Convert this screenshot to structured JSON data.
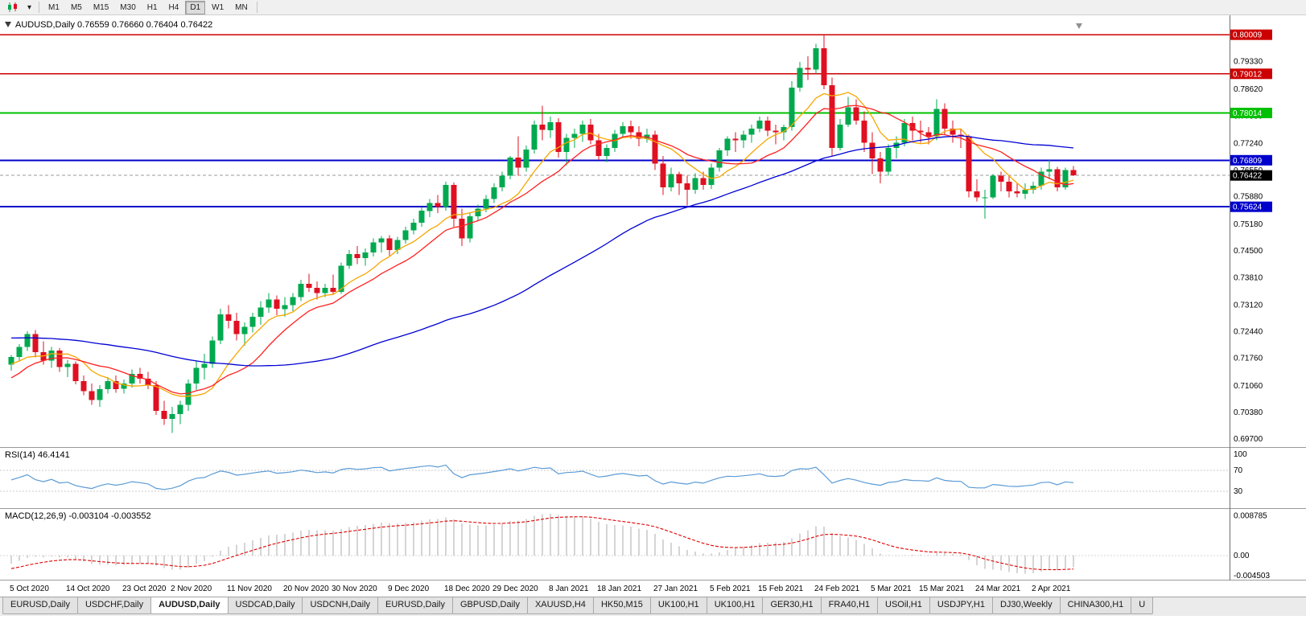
{
  "ui": {
    "toolbar": {
      "timeframes": [
        "M1",
        "M5",
        "M15",
        "M30",
        "H1",
        "H4",
        "D1",
        "W1",
        "MN"
      ],
      "active_timeframe": "D1",
      "dropdown_icon": "▾"
    },
    "price_axis": {
      "ticks": [
        "0.79330",
        "0.78620",
        "0.77930",
        "0.77240",
        "0.76550",
        "0.75880",
        "0.75180",
        "0.74500",
        "0.73810",
        "0.73120",
        "0.72440",
        "0.71760",
        "0.71060",
        "0.70380",
        "0.69700"
      ],
      "line_labels": [
        {
          "text": "0.80009",
          "price": 0.80009,
          "color": "#cc0000"
        },
        {
          "text": "0.79012",
          "price": 0.79012,
          "color": "#cc0000"
        },
        {
          "text": "0.78014",
          "price": 0.78014,
          "color": "#00c000"
        },
        {
          "text": "0.76809",
          "price": 0.76809,
          "color": "#0000cc"
        },
        {
          "text": "0.75624",
          "price": 0.75624,
          "color": "#0000cc"
        }
      ],
      "current": {
        "text": "0.76422",
        "price": 0.76422,
        "bg": "#000000"
      }
    },
    "tabs": {
      "items": [
        "EURUSD,Daily",
        "USDCHF,Daily",
        "AUDUSD,Daily",
        "USDCAD,Daily",
        "USDCNH,Daily",
        "EURUSD,Daily",
        "GBPUSD,Daily",
        "XAUUSD,H4",
        "HK50,M15",
        "UK100,H1",
        "UK100,H1",
        "GER30,H1",
        "FRA40,H1",
        "USOil,H1",
        "USDJPY,H1",
        "DJ30,Weekly",
        "CHINA300,H1",
        "U"
      ],
      "active_index": 2
    }
  },
  "chart_data": {
    "type": "candlestick",
    "symbol": "AUDUSD",
    "timeframe": "Daily",
    "header_text": "AUDUSD,Daily 0.76559 0.76660 0.76404 0.76422",
    "quote": {
      "open": 0.76559,
      "high": 0.7666,
      "low": 0.76404,
      "close": 0.76422
    },
    "colors": {
      "bull": "#00a94f",
      "bear": "#df1021"
    },
    "y_axis": {
      "range": [
        0.695,
        0.803
      ]
    },
    "x_axis": {
      "labels": [
        "5 Oct 2020",
        "14 Oct 2020",
        "23 Oct 2020",
        "2 Nov 2020",
        "11 Nov 2020",
        "20 Nov 2020",
        "30 Nov 2020",
        "9 Dec 2020",
        "18 Dec 2020",
        "29 Dec 2020",
        "8 Jan 2021",
        "18 Jan 2021",
        "27 Jan 2021",
        "5 Feb 2021",
        "15 Feb 2021",
        "24 Feb 2021",
        "5 Mar 2021",
        "15 Mar 2021",
        "24 Mar 2021",
        "2 Apr 2021"
      ],
      "label_indices": [
        0,
        7,
        14,
        20,
        27,
        34,
        40,
        47,
        54,
        60,
        67,
        73,
        80,
        87,
        93,
        100,
        107,
        113,
        120,
        127
      ]
    },
    "horizontal_lines": [
      {
        "price": 0.80009,
        "color": "#cc0000",
        "width": 1.6
      },
      {
        "price": 0.79012,
        "color": "#cc0000",
        "width": 1.6
      },
      {
        "price": 0.78014,
        "color": "#00c000",
        "width": 2
      },
      {
        "price": 0.76809,
        "color": "#0000cc",
        "width": 2
      },
      {
        "price": 0.75624,
        "color": "#0000cc",
        "width": 2
      }
    ],
    "moving_averages": [
      {
        "type": "sma",
        "period": 8,
        "color": "#f6a700"
      },
      {
        "type": "sma",
        "period": 13,
        "color": "#ff2020"
      },
      {
        "type": "sma",
        "period": 55,
        "color": "#0000d4"
      }
    ],
    "indicators": [
      {
        "name": "RSI",
        "display": "RSI(14) 46.4141",
        "value": 46.4141,
        "period": 14,
        "levels": [
          70,
          30
        ],
        "axis_ticks": [
          "100",
          "70",
          "30"
        ],
        "range": [
          0,
          100
        ],
        "color": "#5b9bd5"
      },
      {
        "name": "MACD",
        "display": "MACD(12,26,9) -0.003104 -0.003552",
        "values": [
          -0.003104,
          -0.003552
        ],
        "params": [
          12,
          26,
          9
        ],
        "axis_ticks": [
          "0.008785",
          "0.00",
          "-0.004503"
        ],
        "range": [
          -0.005,
          0.0092
        ],
        "histogram_color": "#ababab",
        "signal_color": "#e00000"
      }
    ],
    "seed_closes_for_indicators": [
      0.715,
      0.7165,
      0.718,
      0.7172,
      0.7188,
      0.7205,
      0.7195,
      0.721,
      0.7222,
      0.7215,
      0.7228,
      0.724,
      0.7232,
      0.7218,
      0.7235,
      0.7248,
      0.726,
      0.7252,
      0.7268,
      0.728,
      0.7272,
      0.7288,
      0.7295,
      0.7285,
      0.7302,
      0.7315,
      0.7308,
      0.7322,
      0.7335,
      0.7328,
      0.7342,
      0.7355,
      0.7348,
      0.736,
      0.7345,
      0.733,
      0.731,
      0.729,
      0.7272,
      0.7255,
      0.724,
      0.7225,
      0.7205,
      0.7185,
      0.716,
      0.713,
      0.7105,
      0.708,
      0.7055,
      0.7035,
      0.706,
      0.709,
      0.7115,
      0.714,
      0.716,
      0.7175,
      0.7162,
      0.715,
      0.7165,
      0.7158
    ],
    "candles": [
      [
        0.716,
        0.7185,
        0.7145,
        0.718
      ],
      [
        0.718,
        0.7212,
        0.717,
        0.7205
      ],
      [
        0.7205,
        0.7245,
        0.7195,
        0.7238
      ],
      [
        0.7238,
        0.7248,
        0.7178,
        0.7192
      ],
      [
        0.7192,
        0.722,
        0.716,
        0.717
      ],
      [
        0.717,
        0.7205,
        0.7152,
        0.7196
      ],
      [
        0.7196,
        0.7202,
        0.7142,
        0.7154
      ],
      [
        0.7154,
        0.7172,
        0.7128,
        0.7162
      ],
      [
        0.7162,
        0.7168,
        0.711,
        0.7118
      ],
      [
        0.7118,
        0.7132,
        0.7082,
        0.7092
      ],
      [
        0.7092,
        0.7112,
        0.7058,
        0.707
      ],
      [
        0.707,
        0.7108,
        0.7052,
        0.7098
      ],
      [
        0.7098,
        0.7128,
        0.7086,
        0.7118
      ],
      [
        0.7118,
        0.7132,
        0.7088,
        0.7098
      ],
      [
        0.7098,
        0.7122,
        0.7086,
        0.7112
      ],
      [
        0.7112,
        0.7148,
        0.7102,
        0.7136
      ],
      [
        0.7136,
        0.7152,
        0.7112,
        0.7124
      ],
      [
        0.7124,
        0.7142,
        0.7098,
        0.7108
      ],
      [
        0.7108,
        0.7118,
        0.7032,
        0.7042
      ],
      [
        0.7042,
        0.7068,
        0.7006,
        0.7022
      ],
      [
        0.7022,
        0.7052,
        0.6986,
        0.7034
      ],
      [
        0.7034,
        0.7068,
        0.7008,
        0.7058
      ],
      [
        0.7058,
        0.7122,
        0.7042,
        0.7112
      ],
      [
        0.7112,
        0.7168,
        0.7096,
        0.7152
      ],
      [
        0.7152,
        0.7188,
        0.7122,
        0.7162
      ],
      [
        0.7162,
        0.7232,
        0.7152,
        0.7222
      ],
      [
        0.7222,
        0.7302,
        0.7212,
        0.7288
      ],
      [
        0.7288,
        0.7312,
        0.7252,
        0.7272
      ],
      [
        0.7272,
        0.7292,
        0.7222,
        0.7238
      ],
      [
        0.7238,
        0.7268,
        0.7208,
        0.7256
      ],
      [
        0.7256,
        0.7292,
        0.7242,
        0.7282
      ],
      [
        0.7282,
        0.7322,
        0.7262,
        0.7306
      ],
      [
        0.7306,
        0.7342,
        0.7292,
        0.7326
      ],
      [
        0.7326,
        0.7336,
        0.7286,
        0.7302
      ],
      [
        0.7302,
        0.7332,
        0.7282,
        0.7312
      ],
      [
        0.7312,
        0.7342,
        0.7296,
        0.7332
      ],
      [
        0.7332,
        0.7376,
        0.7322,
        0.7366
      ],
      [
        0.7366,
        0.7392,
        0.7346,
        0.7356
      ],
      [
        0.7356,
        0.7372,
        0.7326,
        0.7342
      ],
      [
        0.7342,
        0.7366,
        0.7332,
        0.7356
      ],
      [
        0.7356,
        0.739,
        0.7338,
        0.7346
      ],
      [
        0.7346,
        0.742,
        0.734,
        0.7412
      ],
      [
        0.7412,
        0.7452,
        0.7404,
        0.7442
      ],
      [
        0.7442,
        0.7462,
        0.7416,
        0.7432
      ],
      [
        0.7432,
        0.7456,
        0.7412,
        0.7446
      ],
      [
        0.7446,
        0.7482,
        0.7436,
        0.7472
      ],
      [
        0.7472,
        0.7488,
        0.7446,
        0.7482
      ],
      [
        0.7482,
        0.749,
        0.7438,
        0.7452
      ],
      [
        0.7452,
        0.7486,
        0.7442,
        0.7478
      ],
      [
        0.7478,
        0.7512,
        0.7468,
        0.7502
      ],
      [
        0.7502,
        0.7532,
        0.7492,
        0.7522
      ],
      [
        0.7522,
        0.7562,
        0.7512,
        0.7552
      ],
      [
        0.7552,
        0.7582,
        0.7536,
        0.7572
      ],
      [
        0.7572,
        0.7592,
        0.7546,
        0.7562
      ],
      [
        0.7562,
        0.7626,
        0.7552,
        0.7618
      ],
      [
        0.7618,
        0.7624,
        0.7512,
        0.7532
      ],
      [
        0.7532,
        0.7558,
        0.7462,
        0.7482
      ],
      [
        0.7482,
        0.7548,
        0.7472,
        0.7538
      ],
      [
        0.7538,
        0.7568,
        0.7528,
        0.7558
      ],
      [
        0.7558,
        0.7592,
        0.7548,
        0.7582
      ],
      [
        0.7582,
        0.7622,
        0.7572,
        0.7612
      ],
      [
        0.7612,
        0.7652,
        0.7602,
        0.7642
      ],
      [
        0.7642,
        0.7692,
        0.7632,
        0.7688
      ],
      [
        0.7688,
        0.7742,
        0.7642,
        0.7662
      ],
      [
        0.7662,
        0.7718,
        0.7652,
        0.7708
      ],
      [
        0.7708,
        0.7782,
        0.7698,
        0.7772
      ],
      [
        0.7772,
        0.782,
        0.7732,
        0.7758
      ],
      [
        0.7758,
        0.7792,
        0.7738,
        0.7778
      ],
      [
        0.7778,
        0.7788,
        0.7688,
        0.7702
      ],
      [
        0.7702,
        0.7748,
        0.7668,
        0.7738
      ],
      [
        0.7738,
        0.7762,
        0.7712,
        0.7748
      ],
      [
        0.7748,
        0.7782,
        0.7728,
        0.7772
      ],
      [
        0.7772,
        0.7786,
        0.7722,
        0.7732
      ],
      [
        0.7732,
        0.7748,
        0.7682,
        0.7692
      ],
      [
        0.7692,
        0.7722,
        0.7676,
        0.7712
      ],
      [
        0.7712,
        0.7758,
        0.7702,
        0.7748
      ],
      [
        0.7748,
        0.7778,
        0.7738,
        0.7768
      ],
      [
        0.7768,
        0.7782,
        0.7736,
        0.7752
      ],
      [
        0.7752,
        0.7768,
        0.7716,
        0.7736
      ],
      [
        0.7736,
        0.7762,
        0.7726,
        0.7746
      ],
      [
        0.7746,
        0.7756,
        0.7656,
        0.7672
      ],
      [
        0.7672,
        0.7692,
        0.7592,
        0.7612
      ],
      [
        0.7612,
        0.7662,
        0.7602,
        0.7646
      ],
      [
        0.7646,
        0.7652,
        0.7592,
        0.7622
      ],
      [
        0.7622,
        0.7642,
        0.7566,
        0.7606
      ],
      [
        0.7606,
        0.7648,
        0.7596,
        0.7636
      ],
      [
        0.7636,
        0.7652,
        0.7606,
        0.7618
      ],
      [
        0.7618,
        0.7672,
        0.7608,
        0.7662
      ],
      [
        0.7662,
        0.7712,
        0.7652,
        0.7706
      ],
      [
        0.7706,
        0.7742,
        0.7692,
        0.7736
      ],
      [
        0.7736,
        0.7752,
        0.7702,
        0.7732
      ],
      [
        0.7732,
        0.7756,
        0.7712,
        0.7746
      ],
      [
        0.7746,
        0.7772,
        0.7726,
        0.7762
      ],
      [
        0.7762,
        0.7792,
        0.7752,
        0.7782
      ],
      [
        0.7782,
        0.7792,
        0.7742,
        0.7756
      ],
      [
        0.7756,
        0.7772,
        0.7722,
        0.7752
      ],
      [
        0.7752,
        0.7772,
        0.7732,
        0.7766
      ],
      [
        0.7766,
        0.7882,
        0.7756,
        0.7866
      ],
      [
        0.7866,
        0.7932,
        0.7856,
        0.7916
      ],
      [
        0.7916,
        0.7946,
        0.7886,
        0.7912
      ],
      [
        0.7912,
        0.7978,
        0.7902,
        0.7966
      ],
      [
        0.7966,
        0.8001,
        0.7862,
        0.7872
      ],
      [
        0.7872,
        0.7892,
        0.7692,
        0.7712
      ],
      [
        0.7712,
        0.7786,
        0.7706,
        0.7772
      ],
      [
        0.7772,
        0.7842,
        0.7766,
        0.7816
      ],
      [
        0.7816,
        0.7836,
        0.7772,
        0.7782
      ],
      [
        0.7782,
        0.7806,
        0.7702,
        0.7726
      ],
      [
        0.7726,
        0.7752,
        0.7646,
        0.7686
      ],
      [
        0.7686,
        0.7702,
        0.7622,
        0.7652
      ],
      [
        0.7652,
        0.7722,
        0.7642,
        0.7712
      ],
      [
        0.7712,
        0.7742,
        0.7686,
        0.7726
      ],
      [
        0.7726,
        0.7786,
        0.7716,
        0.7776
      ],
      [
        0.7776,
        0.7792,
        0.7732,
        0.7756
      ],
      [
        0.7756,
        0.7782,
        0.7726,
        0.7752
      ],
      [
        0.7752,
        0.7766,
        0.7722,
        0.7742
      ],
      [
        0.7742,
        0.7836,
        0.7732,
        0.7812
      ],
      [
        0.7812,
        0.7826,
        0.7746,
        0.7762
      ],
      [
        0.7762,
        0.7782,
        0.7726,
        0.7746
      ],
      [
        0.7746,
        0.7762,
        0.7712,
        0.7742
      ],
      [
        0.7742,
        0.7746,
        0.7586,
        0.7602
      ],
      [
        0.7602,
        0.7632,
        0.7576,
        0.7586
      ],
      [
        0.7586,
        0.7606,
        0.7532,
        0.7586
      ],
      [
        0.7586,
        0.7646,
        0.7582,
        0.7642
      ],
      [
        0.7642,
        0.7652,
        0.7602,
        0.7626
      ],
      [
        0.7626,
        0.7642,
        0.7586,
        0.7602
      ],
      [
        0.7602,
        0.7622,
        0.7586,
        0.7596
      ],
      [
        0.7596,
        0.7622,
        0.7582,
        0.7606
      ],
      [
        0.7606,
        0.7626,
        0.7596,
        0.7616
      ],
      [
        0.7616,
        0.7662,
        0.7606,
        0.7652
      ],
      [
        0.7652,
        0.7682,
        0.7632,
        0.7658
      ],
      [
        0.7658,
        0.7664,
        0.7602,
        0.7612
      ],
      [
        0.7612,
        0.7662,
        0.7606,
        0.7656
      ],
      [
        0.76559,
        0.7666,
        0.76404,
        0.76422
      ]
    ]
  }
}
